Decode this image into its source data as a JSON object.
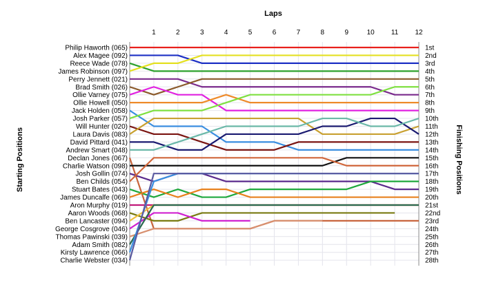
{
  "chart_data": {
    "type": "line",
    "title": "Laps",
    "ylabel_left": "Starting Positions",
    "ylabel_right": "Finishing Positions",
    "x": [
      0,
      1,
      2,
      3,
      4,
      5,
      6,
      7,
      8,
      9,
      10,
      11,
      12
    ],
    "x_tick_labels": [
      "1",
      "2",
      "3",
      "4",
      "5",
      "6",
      "7",
      "8",
      "9",
      "10",
      "11",
      "12"
    ],
    "position_labels": [
      "1st",
      "2nd",
      "3rd",
      "4th",
      "5th",
      "6th",
      "7th",
      "8th",
      "9th",
      "10th",
      "11th",
      "12th",
      "13th",
      "14th",
      "15th",
      "16th",
      "17th",
      "18th",
      "19th",
      "20th",
      "21st",
      "22nd",
      "23rd",
      "24th",
      "25th",
      "26th",
      "27th",
      "28th"
    ],
    "grid": true,
    "series": [
      {
        "name": "Philip Haworth (065)",
        "color": "#e8201c",
        "positions": [
          1,
          1,
          1,
          1,
          1,
          1,
          1,
          1,
          1,
          1,
          1,
          1,
          1
        ]
      },
      {
        "name": "Alex Magee (092)",
        "color": "#1c2fc4",
        "positions": [
          2,
          2,
          2,
          3,
          3,
          3,
          3,
          3,
          3,
          3,
          3,
          3,
          3
        ]
      },
      {
        "name": "Reece Wade (078)",
        "color": "#2ca02c",
        "positions": [
          3,
          4,
          4,
          4,
          4,
          4,
          4,
          4,
          4,
          4,
          4,
          4,
          4
        ]
      },
      {
        "name": "James Robinson (097)",
        "color": "#e4e020",
        "positions": [
          4,
          3,
          3,
          2,
          2,
          2,
          2,
          2,
          2,
          2,
          2,
          2,
          2
        ]
      },
      {
        "name": "Perry Jennett (021)",
        "color": "#7a2a8c",
        "positions": [
          5,
          5,
          5,
          6,
          6,
          6,
          6,
          6,
          6,
          6,
          6,
          7,
          7
        ]
      },
      {
        "name": "Brad Smith (026)",
        "color": "#8b5a2b",
        "positions": [
          6,
          7,
          6,
          5,
          5,
          5,
          5,
          5,
          5,
          5,
          5,
          5,
          5
        ]
      },
      {
        "name": "Ollie Varney (075)",
        "color": "#e020e0",
        "positions": [
          7,
          6,
          7,
          7,
          9,
          9,
          9,
          9,
          9,
          9,
          9,
          9,
          9
        ]
      },
      {
        "name": "Ollie Howell (050)",
        "color": "#ee8a2a",
        "positions": [
          8,
          8,
          8,
          8,
          7,
          8,
          8,
          8,
          8,
          8,
          8,
          8,
          8
        ]
      },
      {
        "name": "Jack Holden (058)",
        "color": "#3a8ee0",
        "positions": [
          9,
          11,
          11,
          11,
          13,
          13,
          13,
          14,
          14,
          14,
          14,
          14,
          14
        ]
      },
      {
        "name": "Josh Parker (057)",
        "color": "#7ee040",
        "positions": [
          10,
          9,
          9,
          9,
          8,
          7,
          7,
          7,
          7,
          7,
          7,
          6,
          6
        ]
      },
      {
        "name": "Will Hunter (020)",
        "color": "#7a1410",
        "positions": [
          11,
          12,
          12,
          13,
          14,
          14,
          14,
          13,
          13,
          13,
          13,
          13,
          13
        ]
      },
      {
        "name": "Laura Davis (083)",
        "color": "#c8a030",
        "positions": [
          12,
          10,
          10,
          10,
          10,
          10,
          10,
          10,
          12,
          12,
          12,
          12,
          11
        ]
      },
      {
        "name": "David Pittard (041)",
        "color": "#1a1a70",
        "positions": [
          13,
          13,
          14,
          14,
          12,
          12,
          12,
          12,
          11,
          11,
          10,
          10,
          12
        ]
      },
      {
        "name": "Andrew Smart (048)",
        "color": "#6ab8a8",
        "positions": [
          14,
          14,
          13,
          12,
          11,
          11,
          11,
          11,
          10,
          10,
          11,
          11,
          10
        ]
      },
      {
        "name": "Declan Jones (067)",
        "color": "#c8643c",
        "positions": [
          15,
          24,
          24,
          24,
          24,
          24,
          23,
          23,
          23,
          23,
          23,
          23,
          23
        ]
      },
      {
        "name": "Charlie Watson (098)",
        "color": "#111111",
        "positions": [
          16,
          16,
          16,
          16,
          16,
          16,
          16,
          16,
          16,
          15,
          15,
          15,
          15
        ]
      },
      {
        "name": "Josh Gollin (074)",
        "color": "#5a2a8c",
        "positions": [
          17,
          18,
          17,
          17,
          18,
          18,
          18,
          18,
          18,
          18,
          18,
          19,
          19
        ]
      },
      {
        "name": "Ben Childs (054)",
        "color": "#d0663a",
        "positions": [
          18,
          15,
          15,
          15,
          15,
          15,
          15,
          15,
          15,
          16,
          16,
          16,
          16
        ]
      },
      {
        "name": "Stuart Bates (043)",
        "color": "#1ea83c",
        "positions": [
          19,
          20,
          19,
          20,
          20,
          19,
          19,
          19,
          19,
          19,
          18,
          18,
          18
        ]
      },
      {
        "name": "James Duncalfe (069)",
        "color": "#e8801c",
        "positions": [
          20,
          19,
          20,
          19,
          19,
          20,
          20,
          20,
          20,
          20,
          20,
          20,
          20
        ]
      },
      {
        "name": "Aron Murphy (019)",
        "color": "#c01878",
        "positions": [
          21,
          21,
          21,
          21,
          21,
          21,
          21,
          21,
          21,
          21,
          21,
          21,
          21
        ]
      },
      {
        "name": "Aaron Woods (068)",
        "color": "#787a10",
        "positions": [
          22,
          23,
          23,
          22,
          22,
          22,
          22,
          22,
          22,
          22,
          22,
          22
        ]
      },
      {
        "name": "Ben Lancaster (094)",
        "color": "#f0c040",
        "positions": [
          23,
          21,
          21,
          21,
          21,
          21,
          21,
          21,
          21,
          21,
          21,
          21,
          21
        ]
      },
      {
        "name": "George Cosgrove (046)",
        "color": "#d020d0",
        "positions": [
          24,
          22,
          22,
          23,
          23,
          23
        ]
      },
      {
        "name": "Thomas Pawinski (039)",
        "color": "#d89070",
        "positions": [
          25,
          24,
          24,
          24,
          24,
          24,
          23,
          23,
          23
        ]
      },
      {
        "name": "Adam Smith (082)",
        "color": "#2a6a50",
        "positions": [
          26,
          21,
          21,
          21,
          21,
          21,
          21,
          21,
          21,
          21,
          21,
          21,
          21
        ]
      },
      {
        "name": "Kirsty Lawrence (066)",
        "color": "#3a90e0",
        "positions": [
          27,
          18,
          17,
          17,
          17,
          17,
          17,
          17,
          17,
          17,
          17,
          17,
          17
        ]
      },
      {
        "name": "Charlie Webster (034)",
        "color": "#5a5aa0",
        "positions": [
          28,
          17,
          17,
          17,
          17,
          17,
          17,
          17,
          17,
          17,
          17,
          17,
          17
        ]
      }
    ]
  }
}
